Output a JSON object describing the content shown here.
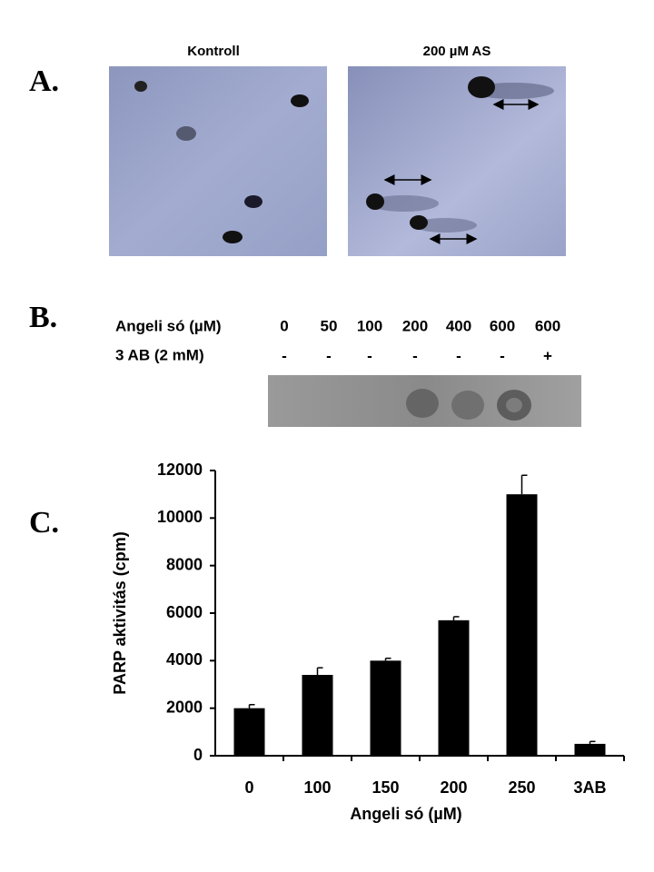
{
  "panel_labels": [
    "A.",
    "B.",
    "C."
  ],
  "comet": {
    "captions": [
      "Kontroll",
      "200 µM  AS"
    ]
  },
  "blot": {
    "row_labels": [
      "Angeli só (µM)",
      "3 AB (2 mM)"
    ],
    "concentrations": [
      "0",
      "50",
      "100",
      "200",
      "400",
      "600",
      "600"
    ],
    "inhibitor": [
      "-",
      "-",
      "-",
      "-",
      "-",
      "-",
      "+"
    ]
  },
  "chart_data": {
    "type": "bar",
    "x_label": "Angeli só (µM)",
    "y_label": "PARP aktivitás (cpm)",
    "categories": [
      "0",
      "100",
      "150",
      "200",
      "250",
      "3AB"
    ],
    "values": [
      2000,
      3400,
      4000,
      5700,
      11000,
      500
    ],
    "errors": [
      150,
      300,
      100,
      150,
      800,
      100
    ],
    "color": "#000000",
    "ylim": [
      0,
      12000
    ],
    "yticks": [
      0,
      2000,
      4000,
      6000,
      8000,
      10000,
      12000
    ]
  }
}
